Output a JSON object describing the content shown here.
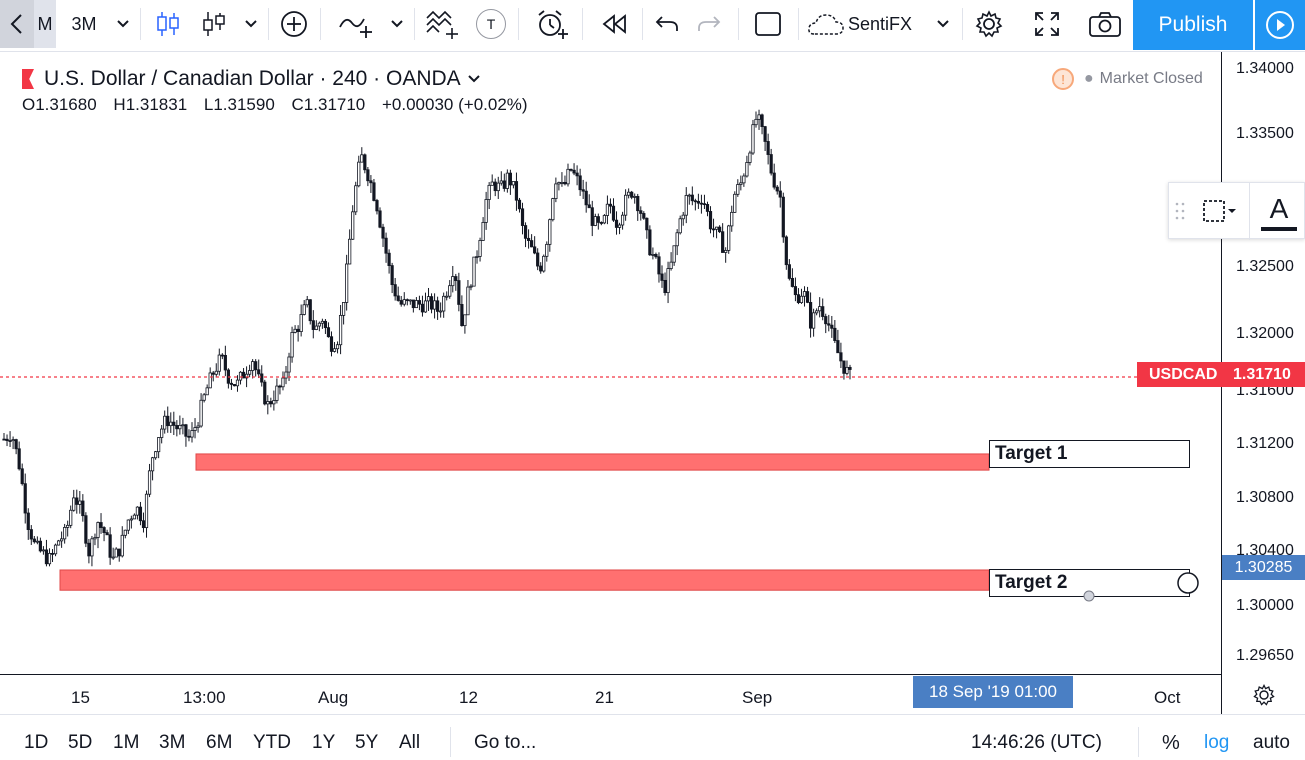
{
  "toolbar": {
    "interval_short": "M",
    "interval": "3M",
    "indicator_label": "SentiFX",
    "text_badge": "T",
    "publish_label": "Publish"
  },
  "header": {
    "symbol_title": "U.S. Dollar / Canadian Dollar · 240 · OANDA",
    "open": "O1.31680",
    "high": "H1.31831",
    "low": "L1.31590",
    "close": "C1.31710",
    "change": "+0.00030 (+0.02%)",
    "market_status": "Market Closed",
    "market_icon_text": "!"
  },
  "floating_toolbar": {
    "text_tool": "A"
  },
  "price_axis": {
    "labels": [
      "1.34000",
      "1.33500",
      "1.32500",
      "1.32000",
      "1.31600",
      "1.31200",
      "1.30800",
      "1.30400",
      "1.30000",
      "1.29650"
    ],
    "current_symbol": "USDCAD",
    "current_price": "1.31710",
    "crosshair_price": "1.30285"
  },
  "targets": {
    "target1_label": "Target 1",
    "target2_label": "Target 2"
  },
  "time_axis": {
    "labels": [
      "15",
      "13:00",
      "Aug",
      "12",
      "21",
      "Sep",
      "Oct"
    ],
    "crosshair_date": "18 Sep '19   01:00"
  },
  "bottom_bar": {
    "ranges": [
      "1D",
      "5D",
      "1M",
      "3M",
      "6M",
      "YTD",
      "1Y",
      "5Y",
      "All"
    ],
    "goto_label": "Go to...",
    "clock": "14:46:26 (UTC)",
    "percent_label": "%",
    "log_label": "log",
    "auto_label": "auto"
  },
  "colors": {
    "accent": "#2196f3",
    "down": "#f23645",
    "target_fill": "#ff7070",
    "crosshair_tag": "#4a7fc4"
  },
  "chart_data": {
    "type": "candlestick",
    "symbol": "USDCAD",
    "timeframe": "240",
    "ylim": [
      1.2965,
      1.3425
    ],
    "price_scale": "log",
    "current_price": 1.3171,
    "x": [
      "15",
      "13:00",
      "Aug",
      "12",
      "21",
      "Sep",
      "Oct"
    ],
    "close_path": [
      1.3125,
      1.313,
      1.3105,
      1.3065,
      1.3045,
      1.304,
      1.3035,
      1.305,
      1.3055,
      1.3085,
      1.307,
      1.304,
      1.3065,
      1.3055,
      1.3035,
      1.3045,
      1.3065,
      1.3075,
      1.3065,
      1.311,
      1.313,
      1.314,
      1.3135,
      1.313,
      1.3125,
      1.314,
      1.316,
      1.3175,
      1.3185,
      1.317,
      1.3165,
      1.3175,
      1.3185,
      1.3165,
      1.315,
      1.316,
      1.3165,
      1.32,
      1.321,
      1.3225,
      1.3205,
      1.3215,
      1.3195,
      1.32,
      1.324,
      1.33,
      1.3335,
      1.332,
      1.33,
      1.327,
      1.324,
      1.3225,
      1.3225,
      1.3225,
      1.3225,
      1.3225,
      1.322,
      1.3235,
      1.3255,
      1.321,
      1.324,
      1.3265,
      1.33,
      1.3315,
      1.331,
      1.332,
      1.3305,
      1.3275,
      1.3265,
      1.325,
      1.3275,
      1.332,
      1.331,
      1.3325,
      1.3315,
      1.33,
      1.3285,
      1.328,
      1.33,
      1.3285,
      1.33,
      1.331,
      1.3295,
      1.327,
      1.3255,
      1.3235,
      1.3255,
      1.3285,
      1.3305,
      1.33,
      1.3305,
      1.3285,
      1.3275,
      1.3265,
      1.3305,
      1.3315,
      1.334,
      1.3365,
      1.3345,
      1.332,
      1.3305,
      1.3245,
      1.323,
      1.3235,
      1.321,
      1.3225,
      1.3215,
      1.3195,
      1.3181,
      1.3171
    ],
    "zones": [
      {
        "name": "Target 1",
        "low": 1.3102,
        "high": 1.3114
      },
      {
        "name": "Target 2",
        "low": 1.3013,
        "high": 1.3028
      }
    ]
  }
}
